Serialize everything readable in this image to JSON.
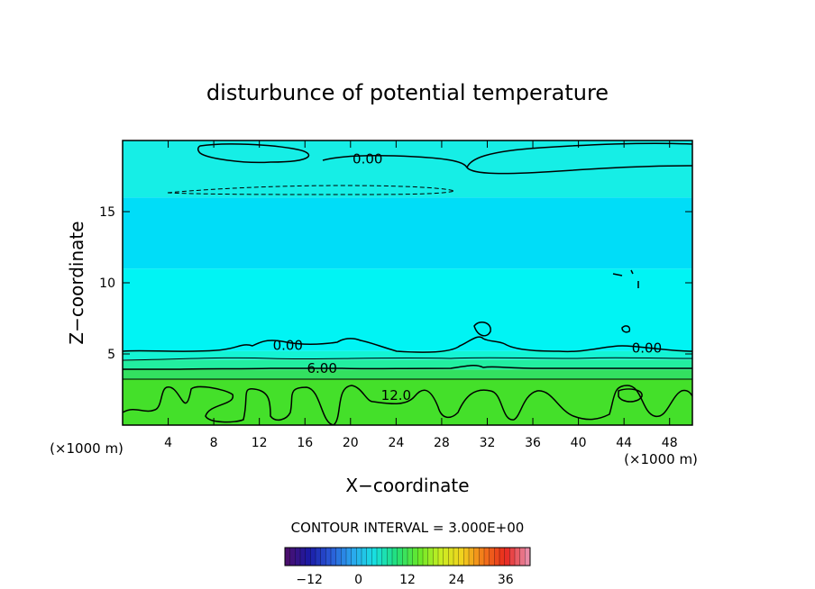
{
  "chart_data": {
    "type": "heatmap",
    "title": "disturbunce of potential temperature",
    "xlabel": "X−coordinate",
    "ylabel": "Z−coordinate",
    "x_unit_left": "(×1000 m)",
    "x_unit_right": "(×1000 m)",
    "xlim": [
      0,
      50
    ],
    "ylim": [
      0,
      20
    ],
    "x_ticks": [
      4,
      8,
      12,
      16,
      20,
      24,
      28,
      32,
      36,
      40,
      44,
      48
    ],
    "y_ticks": [
      5,
      10,
      15
    ],
    "contour_interval_text": "CONTOUR INTERVAL = 3.000E+00",
    "contour_labels": [
      {
        "text": "0.00",
        "x": 21.5,
        "y": 18.7
      },
      {
        "text": "0.00",
        "x": 14.5,
        "y": 5.6
      },
      {
        "text": "0.00",
        "x": 46.0,
        "y": 5.4
      },
      {
        "text": "6.00",
        "x": 17.5,
        "y": 4.0
      },
      {
        "text": "12.0",
        "x": 24.0,
        "y": 2.1
      }
    ],
    "layers": [
      {
        "z_from": 0.0,
        "z_to": 3.2,
        "value": 13.5,
        "color": "#44e02a"
      },
      {
        "z_from": 3.2,
        "z_to": 3.9,
        "value": 9.0,
        "color": "#33e060"
      },
      {
        "z_from": 3.9,
        "z_to": 4.6,
        "value": 6.0,
        "color": "#22eea0"
      },
      {
        "z_from": 4.6,
        "z_to": 5.2,
        "value": 3.0,
        "color": "#14f4d4"
      },
      {
        "z_from": 5.2,
        "z_to": 11.0,
        "value": 0.0,
        "color": "#00f4f4"
      },
      {
        "z_from": 11.0,
        "z_to": 16.0,
        "value": -0.5,
        "color": "#00ddf8"
      },
      {
        "z_from": 16.0,
        "z_to": 20.0,
        "value": 0.0,
        "color": "#16eee6"
      }
    ],
    "colorbar": {
      "range": [
        -18,
        42
      ],
      "ticks": [
        -12,
        0,
        12,
        24,
        36
      ],
      "tick_labels": [
        "−12",
        "0",
        "12",
        "24",
        "36"
      ],
      "colors": [
        "#4a0f6e",
        "#1a1aa6",
        "#2a5bd8",
        "#2aa8ee",
        "#18e0e0",
        "#22e07a",
        "#66e82a",
        "#c8ee22",
        "#f2d21e",
        "#f2761a",
        "#e8281e",
        "#e88aa6"
      ]
    }
  }
}
